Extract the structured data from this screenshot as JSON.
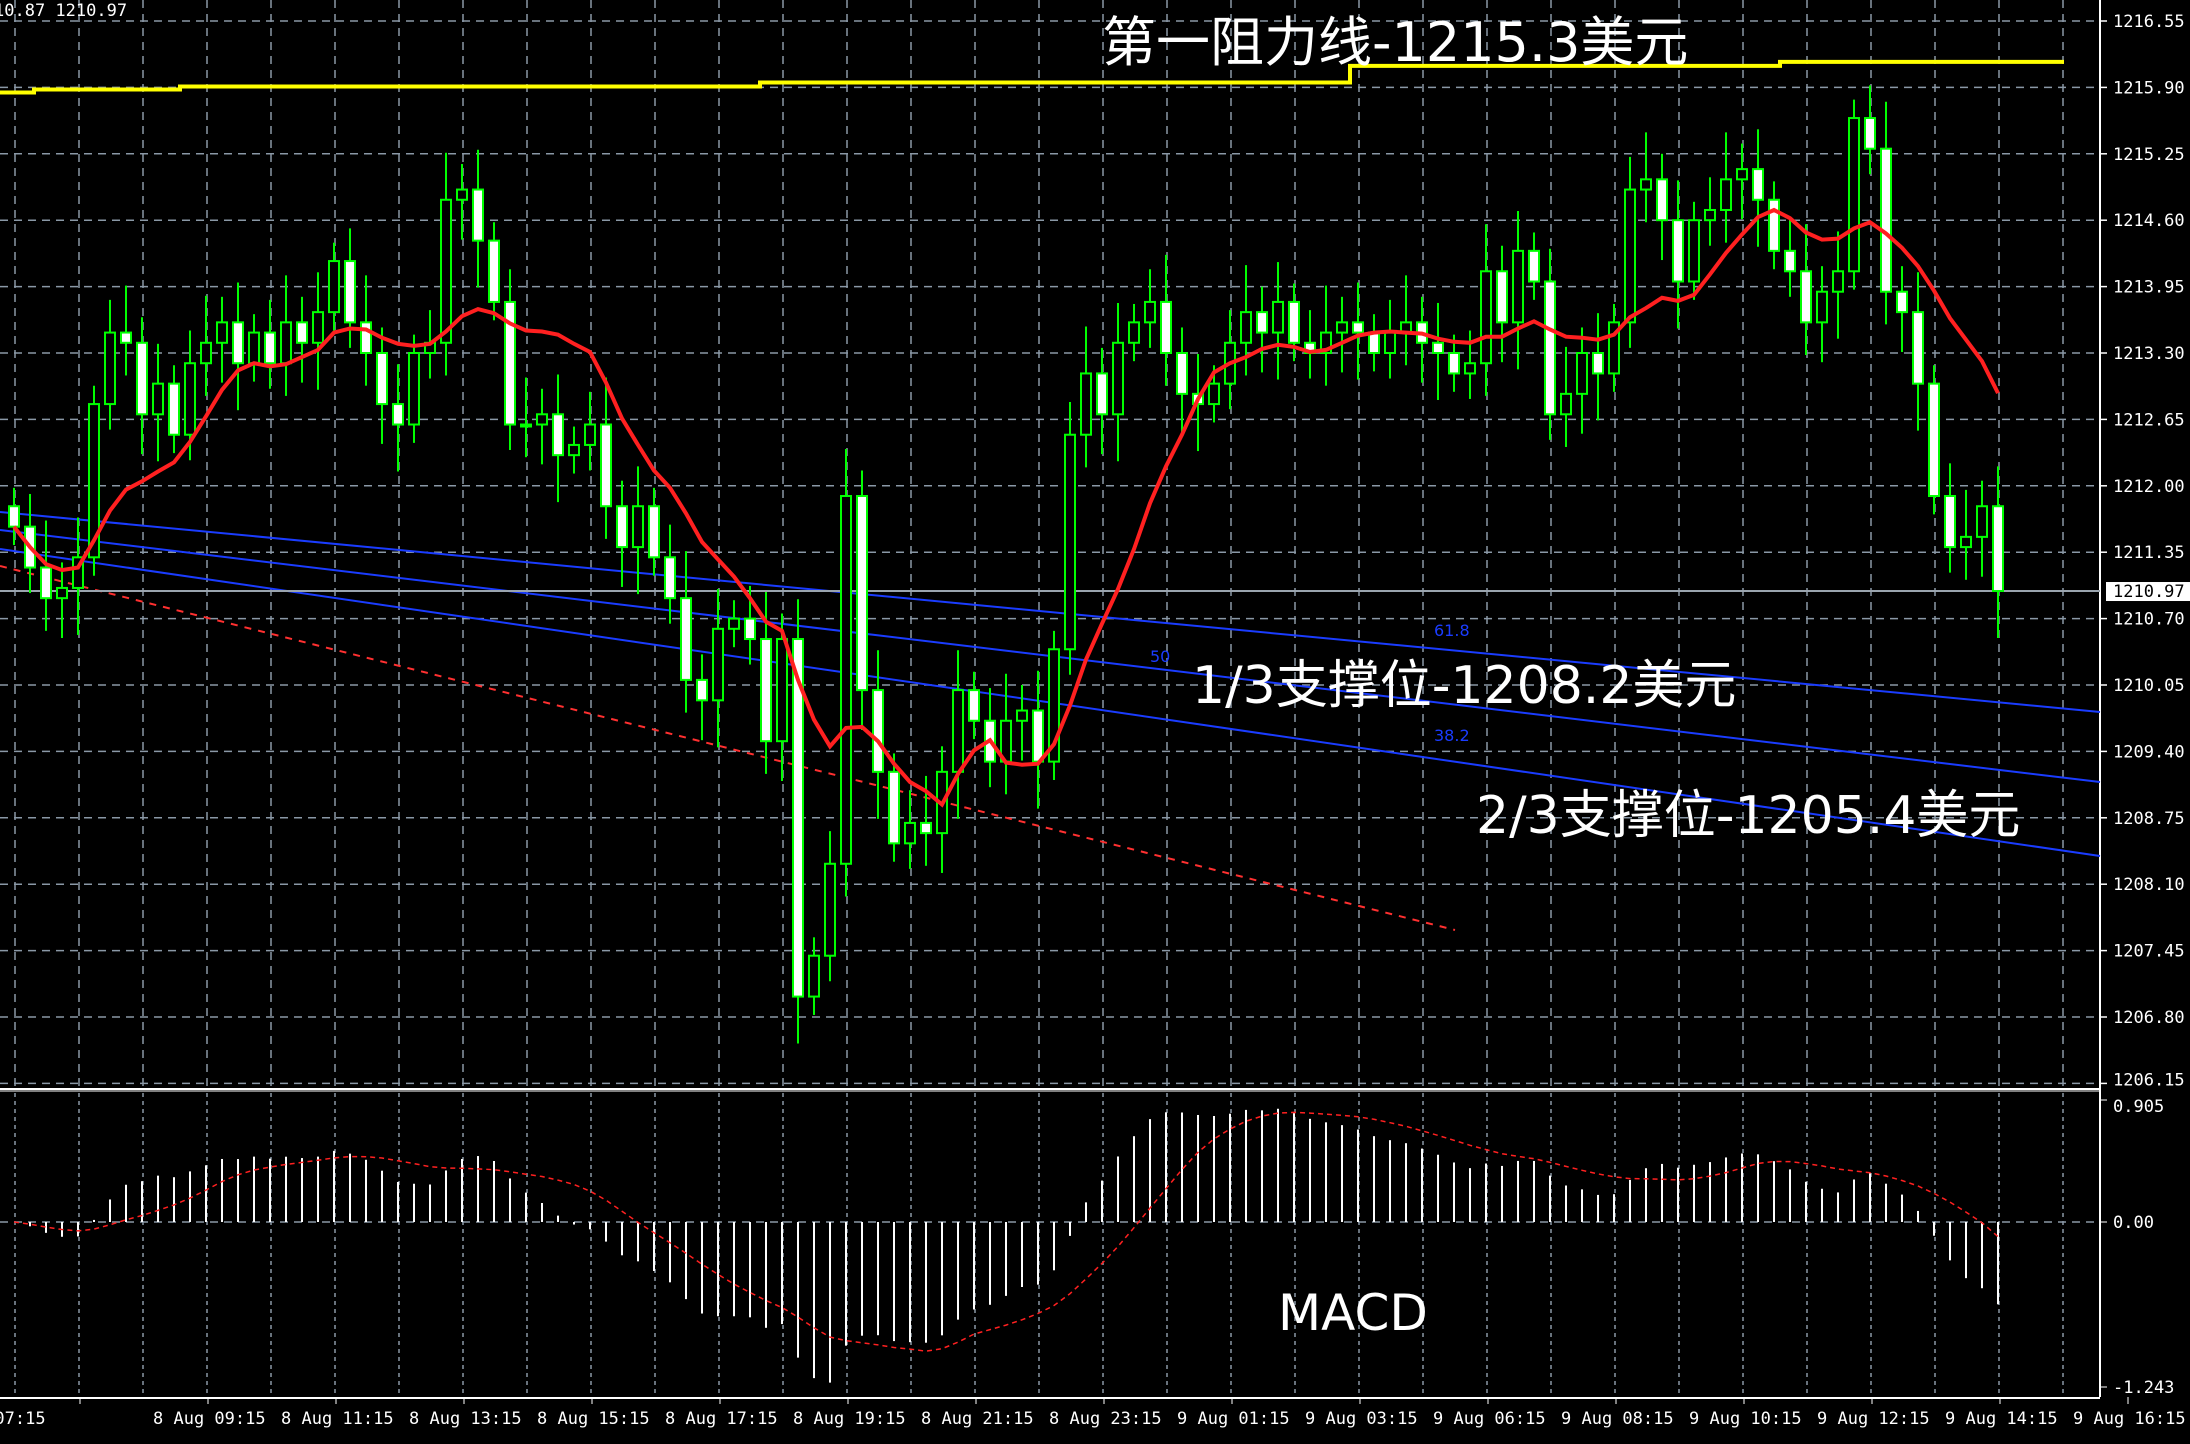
{
  "header": {
    "ohlc_readout": "10.87 1210.97"
  },
  "annotations": {
    "resistance": "第一阻力线-1215.3美元",
    "support_1": "1/3支撑位-1208.2美元",
    "support_2": "2/3支撑位-1205.4美元",
    "indicator": "MACD"
  },
  "fib_labels": [
    "61.8",
    "50",
    "38.2"
  ],
  "colors": {
    "background": "#000000",
    "candle_outline": "#00ff00",
    "bear_fill": "#ffffff",
    "bull_fill": "#000000",
    "moving_average": "#ff2020",
    "resistance_line": "#ffff00",
    "channel_lines": "#1a3cff",
    "grid": "#8a98a6",
    "macd_histogram": "#ffffff",
    "macd_signal": "#ff2020"
  },
  "chart_data": [
    {
      "type": "candlestick",
      "title": "",
      "y_ticks": [
        "1216.55",
        "1215.90",
        "1215.25",
        "1214.60",
        "1213.95",
        "1213.30",
        "1212.65",
        "1212.00",
        "1211.35",
        "1210.70",
        "1210.05",
        "1209.40",
        "1208.75",
        "1208.10",
        "1207.45",
        "1206.80",
        "1206.15"
      ],
      "ylim": [
        1206.15,
        1216.55
      ],
      "x_ticks": [
        "07:15",
        "8 Aug 09:15",
        "8 Aug 11:15",
        "8 Aug 13:15",
        "8 Aug 15:15",
        "8 Aug 17:15",
        "8 Aug 19:15",
        "8 Aug 21:15",
        "8 Aug 23:15",
        "9 Aug 01:15",
        "9 Aug 03:15",
        "9 Aug 06:15",
        "9 Aug 08:15",
        "9 Aug 10:15",
        "9 Aug 12:15",
        "9 Aug 14:15",
        "9 Aug 16:15"
      ],
      "current_price": "1210.97",
      "resistance_level": [
        1215.85,
        1216.15
      ],
      "grid": true,
      "closes": [
        1211.6,
        1211.2,
        1210.9,
        1211.0,
        1211.3,
        1212.8,
        1213.5,
        1213.4,
        1212.7,
        1213.0,
        1212.5,
        1213.2,
        1213.4,
        1213.6,
        1213.2,
        1213.5,
        1213.2,
        1213.6,
        1213.4,
        1213.7,
        1214.2,
        1213.6,
        1213.3,
        1212.8,
        1212.6,
        1213.3,
        1213.4,
        1214.8,
        1214.9,
        1214.4,
        1213.8,
        1212.6,
        1212.6,
        1212.7,
        1212.3,
        1212.4,
        1212.6,
        1211.8,
        1211.4,
        1211.8,
        1211.3,
        1210.9,
        1210.1,
        1209.9,
        1210.6,
        1210.7,
        1210.5,
        1209.5,
        1210.5,
        1207.0,
        1207.4,
        1208.3,
        1211.9,
        1210.0,
        1209.2,
        1208.5,
        1208.7,
        1208.6,
        1209.2,
        1210.0,
        1209.7,
        1209.3,
        1209.7,
        1209.8,
        1209.3,
        1210.4,
        1212.5,
        1213.1,
        1212.7,
        1213.4,
        1213.6,
        1213.8,
        1213.3,
        1212.9,
        1212.8,
        1213.0,
        1213.4,
        1213.7,
        1213.5,
        1213.8,
        1213.4,
        1213.3,
        1213.5,
        1213.6,
        1213.5,
        1213.3,
        1213.5,
        1213.6,
        1213.4,
        1213.3,
        1213.1,
        1213.2,
        1214.1,
        1213.6,
        1214.3,
        1214.0,
        1212.7,
        1212.9,
        1213.3,
        1213.1,
        1213.6,
        1214.9,
        1215.0,
        1214.6,
        1214.0,
        1214.6,
        1214.7,
        1215.0,
        1215.1,
        1214.8,
        1214.3,
        1214.1,
        1213.6,
        1213.9,
        1214.1,
        1215.6,
        1215.3,
        1213.9,
        1213.7,
        1213.0,
        1211.9,
        1211.4,
        1211.5,
        1211.8,
        1210.97
      ]
    },
    {
      "type": "bar",
      "title": "MACD",
      "y_ticks": [
        "0.905",
        "0.00",
        "-1.243"
      ],
      "ylim": [
        -1.243,
        0.905
      ]
    }
  ]
}
